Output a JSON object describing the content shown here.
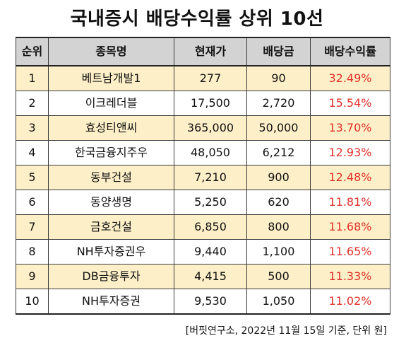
{
  "title": "국내증시 배당수익률 상위 10선",
  "table": {
    "headers": [
      "순위",
      "종목명",
      "현재가",
      "배당금",
      "배당수익률"
    ],
    "rows": [
      {
        "rank": "1",
        "name": "베트남개발1",
        "price": "277",
        "dividend": "90",
        "yield": "32.49%"
      },
      {
        "rank": "2",
        "name": "이크레더블",
        "price": "17,500",
        "dividend": "2,720",
        "yield": "15.54%"
      },
      {
        "rank": "3",
        "name": "효성티앤씨",
        "price": "365,000",
        "dividend": "50,000",
        "yield": "13.70%"
      },
      {
        "rank": "4",
        "name": "한국금융지주우",
        "price": "48,050",
        "dividend": "6,212",
        "yield": "12.93%"
      },
      {
        "rank": "5",
        "name": "동부건설",
        "price": "7,210",
        "dividend": "900",
        "yield": "12.48%"
      },
      {
        "rank": "6",
        "name": "동양생명",
        "price": "5,250",
        "dividend": "620",
        "yield": "11.81%"
      },
      {
        "rank": "7",
        "name": "금호건설",
        "price": "6,850",
        "dividend": "800",
        "yield": "11.68%"
      },
      {
        "rank": "8",
        "name": "NH투자증권우",
        "price": "9,440",
        "dividend": "1,100",
        "yield": "11.65%"
      },
      {
        "rank": "9",
        "name": "DB금융투자",
        "price": "4,415",
        "dividend": "500",
        "yield": "11.33%"
      },
      {
        "rank": "10",
        "name": "NH투자증권",
        "price": "9,530",
        "dividend": "1,050",
        "yield": "11.02%"
      }
    ]
  },
  "source_note": "[버핏연구소, 2022년 11월 15일 기준, 단위 원]",
  "colors": {
    "header_bg": "#d3d3d3",
    "highlight_row_bg": "#fdefc8",
    "yield_text": "#e0302a"
  }
}
